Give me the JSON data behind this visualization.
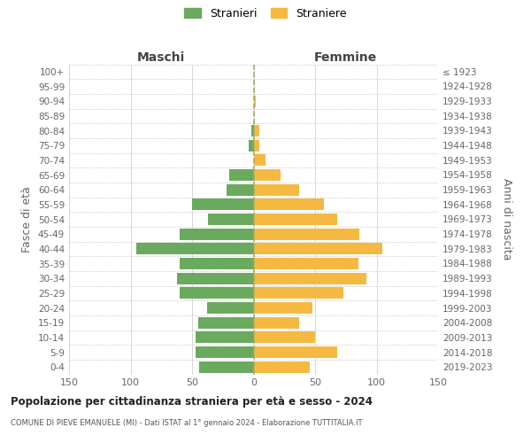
{
  "age_groups": [
    "0-4",
    "5-9",
    "10-14",
    "15-19",
    "20-24",
    "25-29",
    "30-34",
    "35-39",
    "40-44",
    "45-49",
    "50-54",
    "55-59",
    "60-64",
    "65-69",
    "70-74",
    "75-79",
    "80-84",
    "85-89",
    "90-94",
    "95-99",
    "100+"
  ],
  "birth_years": [
    "2019-2023",
    "2014-2018",
    "2009-2013",
    "2004-2008",
    "1999-2003",
    "1994-1998",
    "1989-1993",
    "1984-1988",
    "1979-1983",
    "1974-1978",
    "1969-1973",
    "1964-1968",
    "1959-1963",
    "1954-1958",
    "1949-1953",
    "1944-1948",
    "1939-1943",
    "1934-1938",
    "1929-1933",
    "1924-1928",
    "≤ 1923"
  ],
  "males": [
    44,
    47,
    47,
    45,
    38,
    60,
    62,
    60,
    95,
    60,
    37,
    50,
    22,
    20,
    0,
    4,
    2,
    0,
    0,
    0,
    0
  ],
  "females": [
    46,
    68,
    50,
    37,
    48,
    73,
    92,
    85,
    105,
    86,
    68,
    57,
    37,
    22,
    10,
    5,
    5,
    0,
    2,
    0,
    0
  ],
  "male_color": "#6aaa5e",
  "female_color": "#f5b942",
  "grid_color": "#d0d0d0",
  "title": "Popolazione per cittadinanza straniera per età e sesso - 2024",
  "subtitle": "COMUNE DI PIEVE EMANUELE (MI) - Dati ISTAT al 1° gennaio 2024 - Elaborazione TUTTITALIA.IT",
  "xlabel_left": "Maschi",
  "xlabel_right": "Femmine",
  "ylabel_left": "Fasce di età",
  "ylabel_right": "Anni di nascita",
  "legend_stranieri": "Stranieri",
  "legend_straniere": "Straniere",
  "xlim": 150,
  "dashed_color": "#aaa866"
}
